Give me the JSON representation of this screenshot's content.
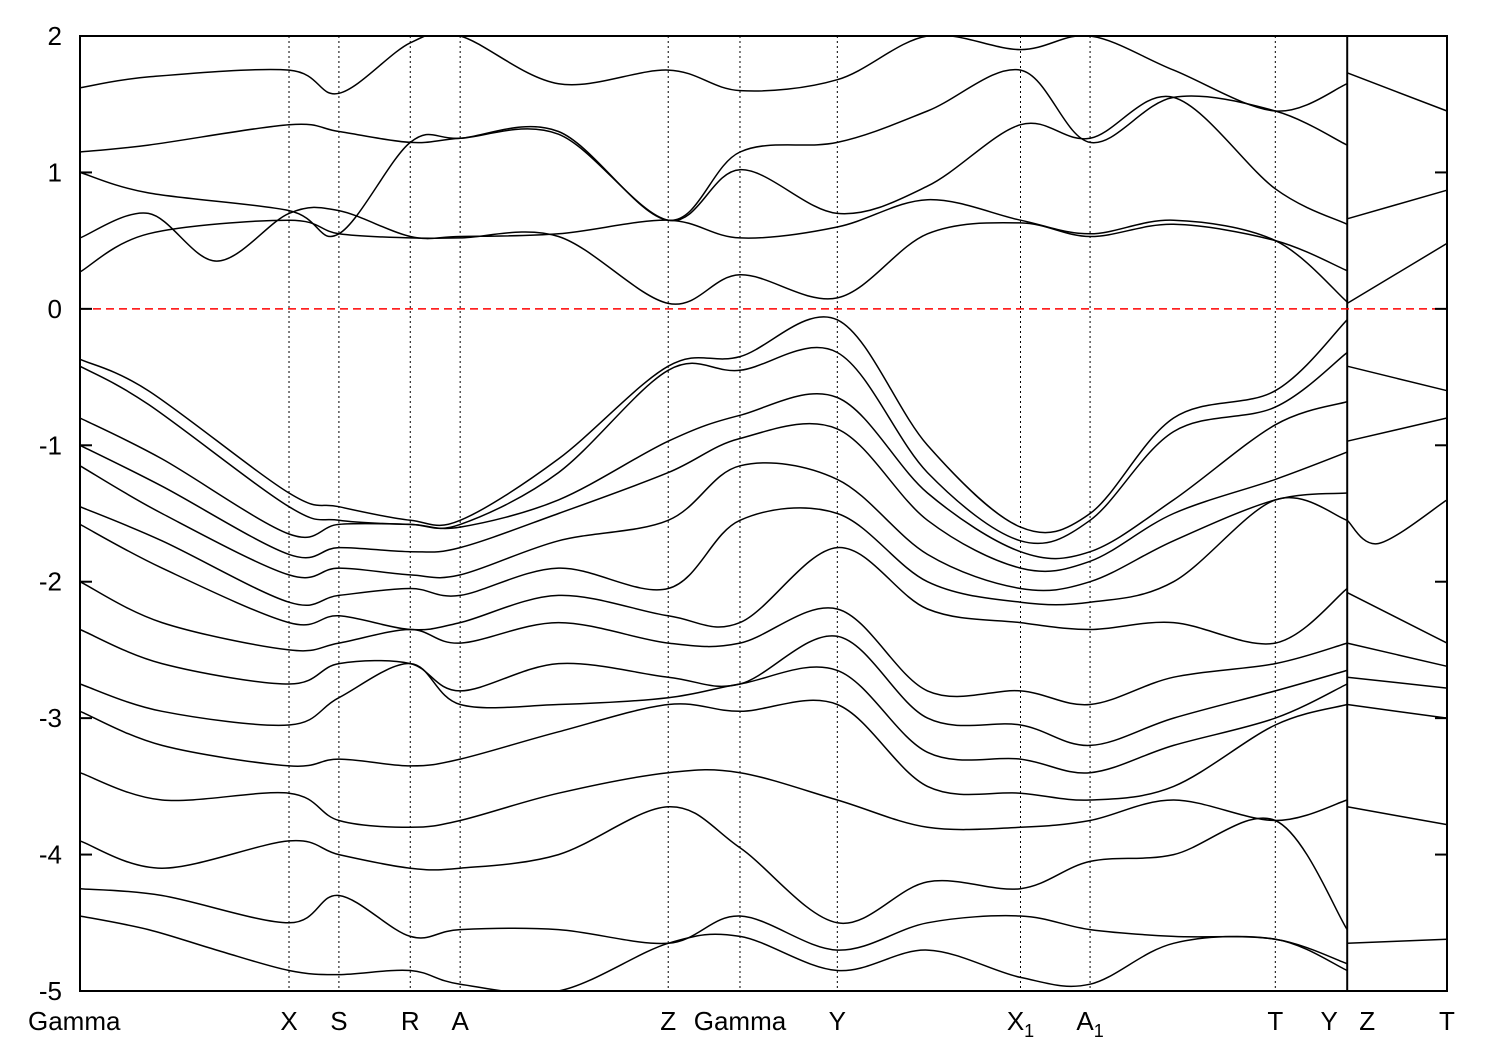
{
  "chart_data": {
    "type": "line",
    "title": "",
    "xlabel": "",
    "ylabel": "",
    "ylim": [
      -5,
      2
    ],
    "yticks": [
      {
        "value": -5,
        "label": "-5"
      },
      {
        "value": -4,
        "label": "-4"
      },
      {
        "value": -3,
        "label": "-3"
      },
      {
        "value": -2,
        "label": "-2"
      },
      {
        "value": -1,
        "label": "-1"
      },
      {
        "value": 0,
        "label": "0"
      },
      {
        "value": 1,
        "label": "1"
      },
      {
        "value": 2,
        "label": "2"
      }
    ],
    "xlim": [
      0,
      1
    ],
    "high_symmetry_points": [
      {
        "label": "Gamma",
        "sub": "",
        "x": 0.0,
        "line": false
      },
      {
        "label": "X",
        "sub": "",
        "x": 0.1529,
        "line": true
      },
      {
        "label": "S",
        "sub": "",
        "x": 0.1894,
        "line": true
      },
      {
        "label": "R",
        "sub": "",
        "x": 0.2416,
        "line": true
      },
      {
        "label": "A",
        "sub": "",
        "x": 0.2781,
        "line": true
      },
      {
        "label": "Z",
        "sub": "",
        "x": 0.4303,
        "line": true
      },
      {
        "label": "Gamma",
        "sub": "",
        "x": 0.4828,
        "line": true
      },
      {
        "label": "Y",
        "sub": "",
        "x": 0.554,
        "line": true
      },
      {
        "label": "X",
        "sub": "1",
        "x": 0.688,
        "line": true
      },
      {
        "label": "A",
        "sub": "1",
        "x": 0.7389,
        "line": true
      },
      {
        "label": "T",
        "sub": "",
        "x": 0.8744,
        "line": true
      },
      {
        "label": "Y",
        "sub": "",
        "x": 0.927,
        "line": false
      },
      {
        "label": "Z",
        "sub": "",
        "x": 0.927,
        "line": false
      },
      {
        "label": "T",
        "sub": "",
        "x": 1.0,
        "line": false
      }
    ],
    "path_break_x": 0.927,
    "fermi_level": {
      "y": 0,
      "color": "#ff0000",
      "style": "dashed"
    },
    "grid": false,
    "line_color": "#000000",
    "series": [
      {
        "x": [
          0,
          0.05,
          0.1529,
          0.1894,
          0.2416,
          0.2781,
          0.35,
          0.4303,
          0.4828,
          0.554,
          0.62,
          0.688,
          0.7389,
          0.8,
          0.8744,
          0.927
        ],
        "y": [
          -0.37,
          -0.6,
          -1.35,
          -1.45,
          -1.55,
          -1.55,
          -1.1,
          -0.42,
          -0.35,
          -0.08,
          -1.0,
          -1.6,
          -1.5,
          -0.8,
          -0.6,
          -0.08
        ]
      },
      {
        "x": [
          0,
          0.05,
          0.1529,
          0.1894,
          0.2416,
          0.2781,
          0.35,
          0.4303,
          0.4828,
          0.554,
          0.62,
          0.688,
          0.7389,
          0.8,
          0.8744,
          0.927
        ],
        "y": [
          -0.42,
          -0.7,
          -1.45,
          -1.55,
          -1.58,
          -1.58,
          -1.2,
          -0.45,
          -0.45,
          -0.32,
          -1.2,
          -1.7,
          -1.55,
          -0.9,
          -0.72,
          -0.32
        ]
      },
      {
        "x": [
          0,
          0.06,
          0.1529,
          0.1894,
          0.2416,
          0.2781,
          0.35,
          0.4303,
          0.4828,
          0.554,
          0.62,
          0.688,
          0.7389,
          0.8,
          0.8744,
          0.927
        ],
        "y": [
          -0.8,
          -1.1,
          -1.65,
          -1.58,
          -1.58,
          -1.6,
          -1.4,
          -0.97,
          -0.78,
          -0.65,
          -1.35,
          -1.78,
          -1.78,
          -1.4,
          -0.85,
          -0.68
        ]
      },
      {
        "x": [
          0,
          0.06,
          0.1529,
          0.1894,
          0.2416,
          0.2781,
          0.35,
          0.4303,
          0.4828,
          0.554,
          0.62,
          0.688,
          0.7389,
          0.8,
          0.8744,
          0.927
        ],
        "y": [
          -1.0,
          -1.3,
          -1.8,
          -1.75,
          -1.78,
          -1.75,
          -1.5,
          -1.2,
          -0.95,
          -0.88,
          -1.55,
          -1.9,
          -1.85,
          -1.5,
          -1.25,
          -1.05
        ]
      },
      {
        "x": [
          0,
          0.06,
          0.1529,
          0.1894,
          0.2416,
          0.2781,
          0.35,
          0.4303,
          0.4828,
          0.554,
          0.62,
          0.688,
          0.7389,
          0.8,
          0.8744,
          0.927
        ],
        "y": [
          -1.15,
          -1.5,
          -1.95,
          -1.9,
          -1.95,
          -1.95,
          -1.7,
          -1.55,
          -1.15,
          -1.25,
          -1.8,
          -2.05,
          -2.0,
          -1.7,
          -1.4,
          -1.35
        ]
      },
      {
        "x": [
          0,
          0.06,
          0.1529,
          0.1894,
          0.2416,
          0.2781,
          0.35,
          0.4303,
          0.4828,
          0.554,
          0.62,
          0.688,
          0.7389,
          0.8,
          0.8744,
          0.927
        ],
        "y": [
          -1.45,
          -1.7,
          -2.15,
          -2.1,
          -2.05,
          -2.1,
          -1.9,
          -2.05,
          -1.55,
          -1.5,
          -2.0,
          -2.15,
          -2.15,
          -2.0,
          -1.4,
          -1.55
        ]
      },
      {
        "x": [
          0,
          0.06,
          0.1529,
          0.1894,
          0.2416,
          0.2781,
          0.35,
          0.4303,
          0.4828,
          0.554,
          0.62,
          0.688,
          0.7389,
          0.8,
          0.8744,
          0.927
        ],
        "y": [
          -1.58,
          -1.9,
          -2.3,
          -2.25,
          -2.35,
          -2.3,
          -2.1,
          -2.25,
          -2.3,
          -1.75,
          -2.2,
          -2.3,
          -2.35,
          -2.3,
          -2.45,
          -2.05
        ]
      },
      {
        "x": [
          0,
          0.06,
          0.1529,
          0.1894,
          0.2416,
          0.2781,
          0.35,
          0.4303,
          0.4828,
          0.554,
          0.62,
          0.688,
          0.7389,
          0.8,
          0.8744,
          0.927
        ],
        "y": [
          -2.0,
          -2.3,
          -2.5,
          -2.45,
          -2.35,
          -2.45,
          -2.3,
          -2.45,
          -2.45,
          -2.2,
          -2.8,
          -2.8,
          -2.9,
          -2.7,
          -2.6,
          -2.45
        ]
      },
      {
        "x": [
          0,
          0.06,
          0.1529,
          0.1894,
          0.2416,
          0.2781,
          0.35,
          0.4303,
          0.4828,
          0.554,
          0.62,
          0.688,
          0.7389,
          0.8,
          0.8744,
          0.927
        ],
        "y": [
          -2.35,
          -2.6,
          -2.75,
          -2.6,
          -2.6,
          -2.8,
          -2.6,
          -2.7,
          -2.75,
          -2.4,
          -3.0,
          -3.05,
          -3.2,
          -3.0,
          -2.8,
          -2.65
        ]
      },
      {
        "x": [
          0,
          0.06,
          0.1529,
          0.1894,
          0.2416,
          0.2781,
          0.35,
          0.4303,
          0.4828,
          0.554,
          0.62,
          0.688,
          0.7389,
          0.8,
          0.8744,
          0.927
        ],
        "y": [
          -2.75,
          -2.95,
          -3.05,
          -2.85,
          -2.6,
          -2.9,
          -2.9,
          -2.85,
          -2.75,
          -2.65,
          -3.25,
          -3.3,
          -3.4,
          -3.2,
          -3.0,
          -2.75
        ]
      },
      {
        "x": [
          0,
          0.06,
          0.1529,
          0.1894,
          0.2416,
          0.2781,
          0.35,
          0.4303,
          0.4828,
          0.554,
          0.62,
          0.688,
          0.7389,
          0.8,
          0.8744,
          0.927
        ],
        "y": [
          -2.95,
          -3.2,
          -3.35,
          -3.3,
          -3.35,
          -3.3,
          -3.1,
          -2.9,
          -2.95,
          -2.9,
          -3.5,
          -3.55,
          -3.6,
          -3.5,
          -3.05,
          -2.9
        ]
      },
      {
        "x": [
          0,
          0.06,
          0.1529,
          0.1894,
          0.2416,
          0.2781,
          0.35,
          0.4303,
          0.4828,
          0.554,
          0.62,
          0.688,
          0.7389,
          0.8,
          0.8744,
          0.927
        ],
        "y": [
          -3.4,
          -3.6,
          -3.55,
          -3.75,
          -3.8,
          -3.75,
          -3.55,
          -3.4,
          -3.4,
          -3.6,
          -3.8,
          -3.8,
          -3.75,
          -3.6,
          -3.75,
          -3.6
        ]
      },
      {
        "x": [
          0,
          0.06,
          0.1529,
          0.1894,
          0.2416,
          0.2781,
          0.35,
          0.4303,
          0.4828,
          0.554,
          0.62,
          0.688,
          0.7389,
          0.8,
          0.8744,
          0.927
        ],
        "y": [
          -3.9,
          -4.1,
          -3.9,
          -4.0,
          -4.1,
          -4.1,
          -4.0,
          -3.65,
          -3.95,
          -4.5,
          -4.2,
          -4.25,
          -4.05,
          -4.0,
          -3.75,
          -4.55
        ]
      },
      {
        "x": [
          0,
          0.06,
          0.1529,
          0.1894,
          0.2416,
          0.2781,
          0.35,
          0.4303,
          0.4828,
          0.554,
          0.62,
          0.688,
          0.7389,
          0.8,
          0.8744,
          0.927
        ],
        "y": [
          -4.25,
          -4.3,
          -4.5,
          -4.3,
          -4.6,
          -4.55,
          -4.55,
          -4.65,
          -4.45,
          -4.7,
          -4.5,
          -4.45,
          -4.55,
          -4.6,
          -4.62,
          -4.8
        ]
      },
      {
        "x": [
          0,
          0.05,
          0.1,
          0.1529,
          0.1894,
          0.2416,
          0.2781,
          0.35,
          0.4303,
          0.4828,
          0.554,
          0.62,
          0.688,
          0.7389,
          0.8,
          0.8744,
          0.927
        ],
        "y": [
          -4.45,
          -4.55,
          -4.7,
          -4.85,
          -4.88,
          -4.85,
          -4.95,
          -5.0,
          -4.65,
          -4.6,
          -4.85,
          -4.7,
          -4.9,
          -4.95,
          -4.65,
          -4.62,
          -4.85
        ]
      },
      {
        "x": [
          0,
          0.05,
          0.1529,
          0.1894,
          0.2416,
          0.2781,
          0.35,
          0.4303,
          0.4828,
          0.554,
          0.62,
          0.688,
          0.7389,
          0.8,
          0.8744,
          0.927
        ],
        "y": [
          0.27,
          0.55,
          0.65,
          0.55,
          0.52,
          0.52,
          0.53,
          0.04,
          0.25,
          0.08,
          0.55,
          0.63,
          0.53,
          0.62,
          0.5,
          0.28
        ]
      },
      {
        "x": [
          0,
          0.05,
          0.1,
          0.1529,
          0.1894,
          0.2416,
          0.2781,
          0.35,
          0.4303,
          0.4828,
          0.554,
          0.62,
          0.688,
          0.7389,
          0.8,
          0.8744,
          0.927
        ],
        "y": [
          0.52,
          0.7,
          0.35,
          0.7,
          0.72,
          0.53,
          0.53,
          0.55,
          0.65,
          0.52,
          0.6,
          0.8,
          0.65,
          0.55,
          0.65,
          0.5,
          0.05
        ]
      },
      {
        "x": [
          0,
          0.05,
          0.1529,
          0.1894,
          0.2416,
          0.2781,
          0.35,
          0.4303,
          0.4828,
          0.554,
          0.62,
          0.688,
          0.7389,
          0.8,
          0.8744,
          0.927
        ],
        "y": [
          1.0,
          0.85,
          0.72,
          0.55,
          1.22,
          1.25,
          1.28,
          0.65,
          1.02,
          0.7,
          0.9,
          1.35,
          1.25,
          1.55,
          0.88,
          0.62
        ]
      },
      {
        "x": [
          0,
          0.05,
          0.1529,
          0.1894,
          0.2416,
          0.2781,
          0.35,
          0.4303,
          0.4828,
          0.554,
          0.62,
          0.688,
          0.7389,
          0.8,
          0.8744,
          0.927
        ],
        "y": [
          1.15,
          1.2,
          1.35,
          1.3,
          1.22,
          1.25,
          1.3,
          0.65,
          1.15,
          1.22,
          1.45,
          1.75,
          1.22,
          1.55,
          1.45,
          1.2
        ]
      },
      {
        "x": [
          0,
          0.05,
          0.1529,
          0.1894,
          0.2416,
          0.2781,
          0.35,
          0.4303,
          0.4828,
          0.554,
          0.62,
          0.688,
          0.7389,
          0.8,
          0.8744,
          0.927
        ],
        "y": [
          1.62,
          1.7,
          1.75,
          1.58,
          1.95,
          2.0,
          1.65,
          1.75,
          1.6,
          1.68,
          2.0,
          1.9,
          2.0,
          1.75,
          1.45,
          1.65
        ]
      },
      {
        "x": [
          0.927,
          1.0
        ],
        "y": [
          -0.42,
          -0.6
        ]
      },
      {
        "x": [
          0.927,
          1.0
        ],
        "y": [
          -0.97,
          -0.8
        ]
      },
      {
        "x": [
          0.927,
          0.95,
          1.0
        ],
        "y": [
          -1.55,
          -1.72,
          -1.4
        ]
      },
      {
        "x": [
          0.927,
          1.0
        ],
        "y": [
          -2.08,
          -2.45
        ]
      },
      {
        "x": [
          0.927,
          1.0
        ],
        "y": [
          -2.45,
          -2.62
        ]
      },
      {
        "x": [
          0.927,
          1.0
        ],
        "y": [
          -2.7,
          -2.78
        ]
      },
      {
        "x": [
          0.927,
          1.0
        ],
        "y": [
          -2.9,
          -3.0
        ]
      },
      {
        "x": [
          0.927,
          1.0
        ],
        "y": [
          -3.65,
          -3.78
        ]
      },
      {
        "x": [
          0.927,
          1.0
        ],
        "y": [
          -4.65,
          -4.62
        ]
      },
      {
        "x": [
          0.927,
          1.0
        ],
        "y": [
          0.04,
          0.48
        ]
      },
      {
        "x": [
          0.927,
          1.0
        ],
        "y": [
          0.66,
          0.87
        ]
      },
      {
        "x": [
          0.927,
          1.0
        ],
        "y": [
          1.73,
          1.45
        ]
      }
    ]
  }
}
